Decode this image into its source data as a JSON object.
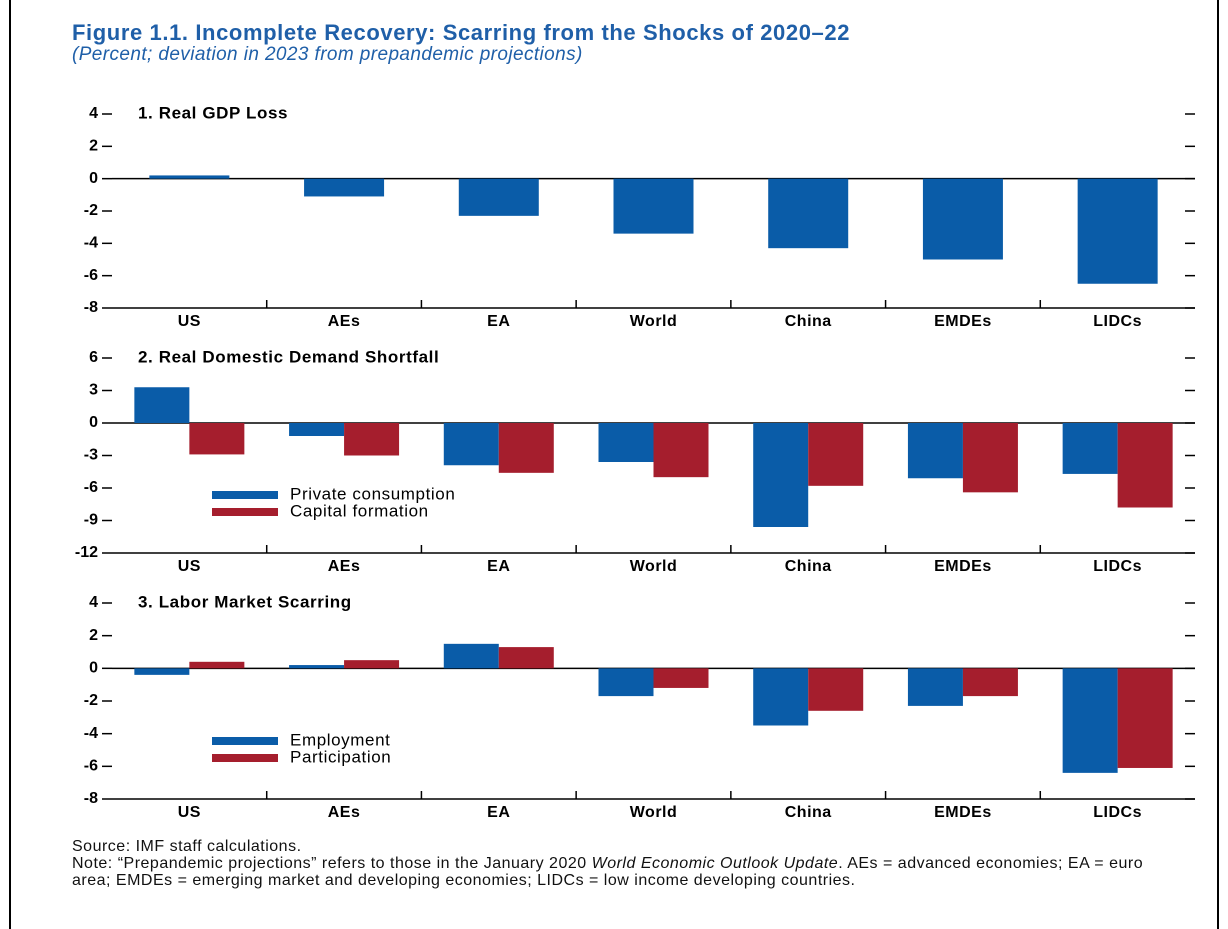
{
  "header": {
    "title": "Figure 1.1.  Incomplete Recovery: Scarring from the Shocks of 2020–22",
    "subtitle": "(Percent; deviation in 2023 from prepandemic projections)"
  },
  "chart_data": [
    {
      "type": "bar",
      "title": "1. Real GDP Loss",
      "categories": [
        "US",
        "AEs",
        "EA",
        "World",
        "China",
        "EMDEs",
        "LIDCs"
      ],
      "values": [
        0.2,
        -1.1,
        -2.3,
        -3.4,
        -4.3,
        -5.0,
        -6.5
      ],
      "color": "#0a5ca8",
      "ylim": [
        -8,
        4
      ],
      "yticks": [
        -8,
        -6,
        -4,
        -2,
        0,
        2,
        4
      ]
    },
    {
      "type": "grouped_bar",
      "title": "2. Real Domestic Demand Shortfall",
      "categories": [
        "US",
        "AEs",
        "EA",
        "World",
        "China",
        "EMDEs",
        "LIDCs"
      ],
      "series": [
        {
          "name": "Private consumption",
          "color": "#0a5ca8",
          "values": [
            3.3,
            -1.2,
            -3.9,
            -3.6,
            -9.6,
            -5.1,
            -4.7
          ]
        },
        {
          "name": "Capital formation",
          "color": "#a51e2d",
          "values": [
            -2.9,
            -3.0,
            -4.6,
            -5.0,
            -5.8,
            -6.4,
            -7.8
          ]
        }
      ],
      "ylim": [
        -12,
        6
      ],
      "yticks": [
        -12,
        -9,
        -6,
        -3,
        0,
        3,
        6
      ],
      "legend": "lower left"
    },
    {
      "type": "grouped_bar",
      "title": "3. Labor Market Scarring",
      "categories": [
        "US",
        "AEs",
        "EA",
        "World",
        "China",
        "EMDEs",
        "LIDCs"
      ],
      "series": [
        {
          "name": "Employment",
          "color": "#0a5ca8",
          "values": [
            -0.4,
            0.2,
            1.5,
            -1.7,
            -3.5,
            -2.3,
            -6.4
          ]
        },
        {
          "name": "Participation",
          "color": "#a51e2d",
          "values": [
            0.4,
            0.5,
            1.3,
            -1.2,
            -2.6,
            -1.7,
            -6.1
          ]
        }
      ],
      "ylim": [
        -8,
        4
      ],
      "yticks": [
        -8,
        -6,
        -4,
        -2,
        0,
        2,
        4
      ],
      "legend": "lower left"
    }
  ],
  "footer": {
    "source": "Source: IMF staff calculations.",
    "note": [
      "Note: “Prepandemic projections” refers to those in the January 2020 ",
      "World Economic Outlook Update",
      ". AEs = advanced economies; EA = euro area; EMDEs = emerging market and developing economies; LIDCs = low income developing countries."
    ]
  }
}
